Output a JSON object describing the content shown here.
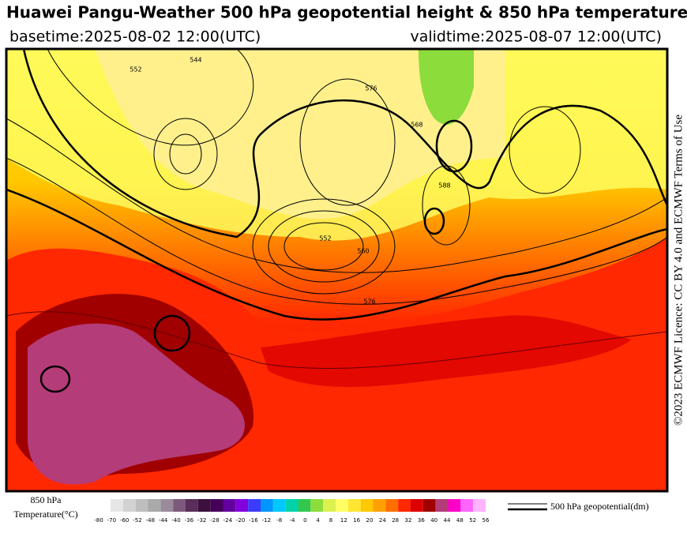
{
  "header": {
    "title": "Huawei Pangu-Weather 500 hPa geopotential height & 850 hPa temperature",
    "basetime": "basetime:2025-08-02 12:00(UTC)",
    "validtime": "validtime:2025-08-07 12:00(UTC)"
  },
  "credit": "©2023 ECMWF Licence: CC BY 4.0 and ECMWF Terms of Use",
  "map": {
    "contour_labels": [
      "544",
      "552",
      "576",
      "588",
      "560",
      "552",
      "568",
      "576"
    ]
  },
  "colorbar": {
    "label_line1": "850 hPa",
    "label_line2": "Temperature(°C)",
    "ticks": [
      -80,
      -70,
      -60,
      -52,
      -48,
      -44,
      -40,
      -36,
      -32,
      -28,
      -24,
      -20,
      -16,
      -12,
      -8,
      -4,
      0,
      4,
      8,
      12,
      16,
      20,
      24,
      28,
      32,
      36,
      40,
      44,
      48,
      52,
      56
    ],
    "colors": [
      "#e6e6e6",
      "#d2d2d2",
      "#bebebe",
      "#aaaaaa",
      "#9b8a9b",
      "#7d5a7d",
      "#5a2d5a",
      "#3c0f3c",
      "#46005a",
      "#6400a0",
      "#8200dc",
      "#3c3cff",
      "#0096ff",
      "#00c8ff",
      "#00d2aa",
      "#32c850",
      "#8cdc3c",
      "#dcf050",
      "#ffff64",
      "#ffe632",
      "#ffc800",
      "#ffa000",
      "#ff6e00",
      "#ff2800",
      "#dc0000",
      "#a00000",
      "#b43c78",
      "#ff00c8",
      "#ff64ff",
      "#ffb4ff"
    ]
  },
  "contour_legend": "500 hPa geopotential(dm)"
}
